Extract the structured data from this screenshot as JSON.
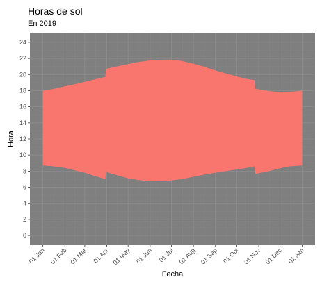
{
  "chart_data": {
    "type": "area",
    "title": "Horas de sol",
    "subtitle": "En 2019",
    "xlabel": "Fecha",
    "ylabel": "Hora",
    "x_ticks": [
      "01 Jan",
      "01 Feb",
      "01 Mar",
      "01 Apr",
      "01 May",
      "01 Jun",
      "01 Jul",
      "01 Aug",
      "01 Sep",
      "01 Oct",
      "01 Nov",
      "01 Dec",
      "01 Jan"
    ],
    "y_ticks": [
      0,
      2,
      4,
      6,
      8,
      10,
      12,
      14,
      16,
      18,
      20,
      22,
      24
    ],
    "xlim": [
      "2019-01-01",
      "2020-01-01"
    ],
    "ylim": [
      0,
      24
    ],
    "grid": true,
    "fill_color": "#F8766D",
    "panel_color": "#7F7F7F",
    "series": [
      {
        "x": [
          "2019-01-01",
          "2019-01-15",
          "2019-02-01",
          "2019-02-15",
          "2019-03-01",
          "2019-03-15",
          "2019-03-30",
          "2019-03-31",
          "2019-04-15",
          "2019-05-01",
          "2019-05-15",
          "2019-06-01",
          "2019-06-21",
          "2019-07-01",
          "2019-07-15",
          "2019-08-01",
          "2019-08-15",
          "2019-09-01",
          "2019-09-15",
          "2019-10-01",
          "2019-10-15",
          "2019-10-26",
          "2019-10-27",
          "2019-11-15",
          "2019-12-01",
          "2019-12-15",
          "2020-01-01"
        ],
        "sunrise": [
          8.7,
          8.6,
          8.4,
          8.1,
          7.8,
          7.4,
          7.0,
          7.9,
          7.5,
          7.1,
          6.9,
          6.75,
          6.75,
          6.85,
          7.0,
          7.3,
          7.55,
          7.8,
          8.0,
          8.2,
          8.4,
          8.6,
          7.65,
          8.0,
          8.35,
          8.6,
          8.7
        ],
        "sunset": [
          18.0,
          18.2,
          18.55,
          18.8,
          19.1,
          19.4,
          19.7,
          20.7,
          21.0,
          21.3,
          21.55,
          21.75,
          21.85,
          21.85,
          21.7,
          21.35,
          21.0,
          20.5,
          20.15,
          19.75,
          19.45,
          19.3,
          18.25,
          17.95,
          17.8,
          17.85,
          18.0
        ]
      }
    ]
  }
}
